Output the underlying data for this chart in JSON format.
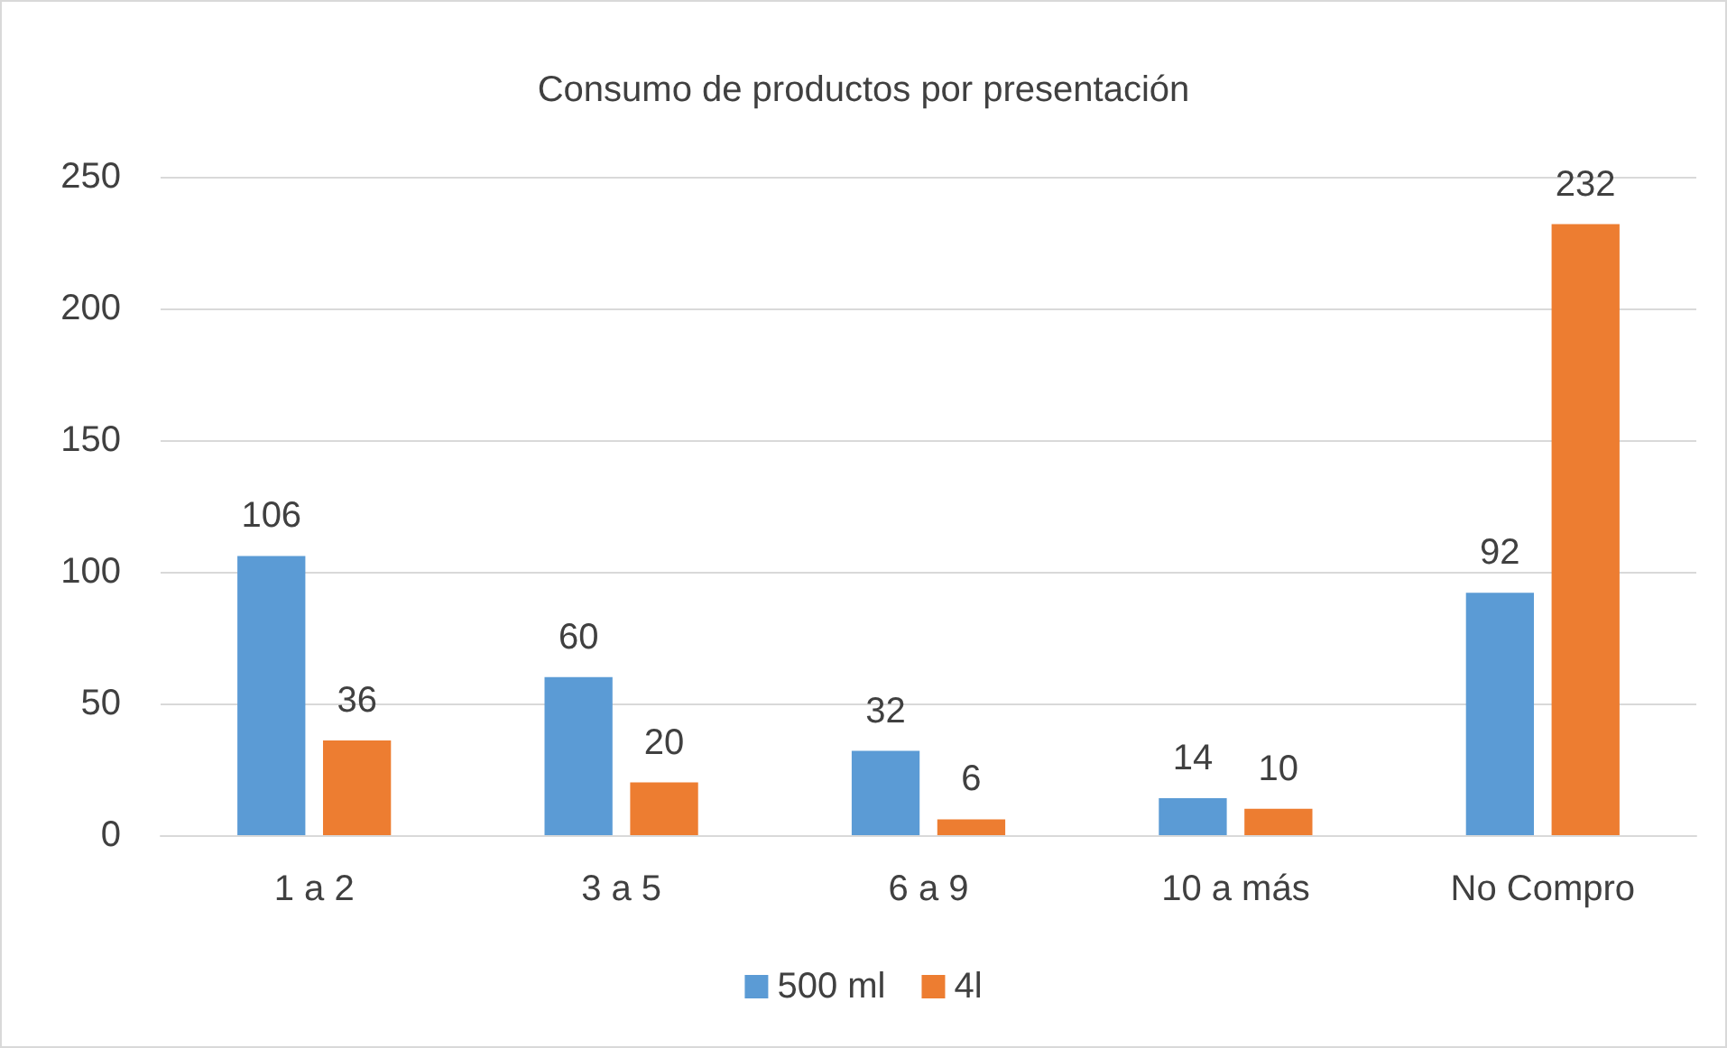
{
  "chart_data": {
    "type": "bar",
    "title": "Consumo de productos por presentación",
    "categories": [
      "1 a 2",
      "3 a 5",
      "6 a 9",
      "10 a más",
      "No Compro"
    ],
    "series": [
      {
        "name": "500 ml",
        "color": "#5b9bd5",
        "values": [
          106,
          60,
          32,
          14,
          92
        ]
      },
      {
        "name": "4l",
        "color": "#ed7d31",
        "values": [
          36,
          20,
          6,
          10,
          232
        ]
      }
    ],
    "ylim": [
      0,
      250
    ],
    "yticks": [
      0,
      50,
      100,
      150,
      200,
      250
    ],
    "grid": "y",
    "legend": "bottom",
    "data_labels": true
  }
}
